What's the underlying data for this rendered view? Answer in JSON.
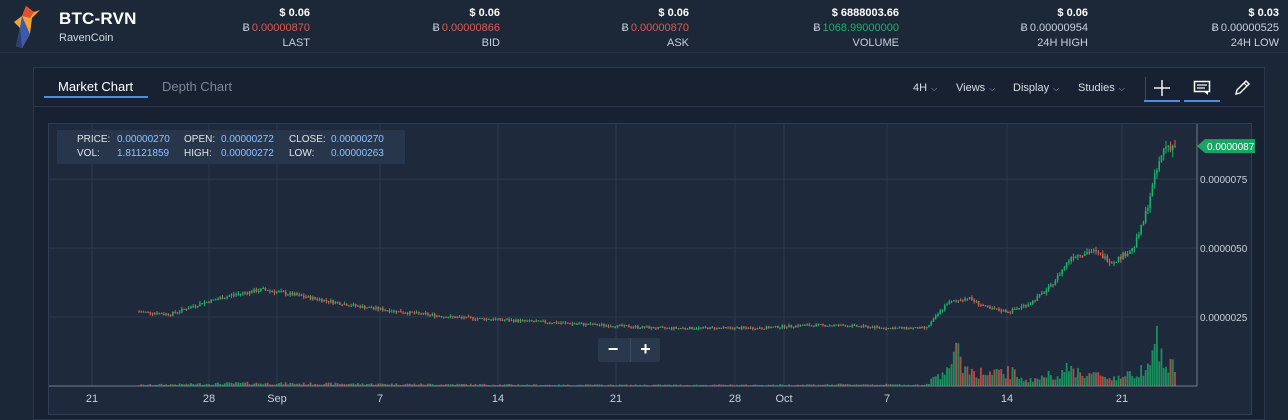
{
  "ticker": {
    "pair": "BTC-RVN",
    "coin": "RavenCoin",
    "stats": [
      {
        "usd": "$ 0.06",
        "btc": "0.00000870",
        "label": "LAST",
        "color": "#e05a4f"
      },
      {
        "usd": "$ 0.06",
        "btc": "0.00000866",
        "label": "BID",
        "color": "#e05a4f"
      },
      {
        "usd": "$ 0.06",
        "btc": "0.00000870",
        "label": "ASK",
        "color": "#e05a4f"
      },
      {
        "usd": "$ 6888003.66",
        "btc": "1068.99000000",
        "label": "VOLUME",
        "color": "#19b36b"
      },
      {
        "usd": "$ 0.06",
        "btc": "0.00000954",
        "label": "24H HIGH",
        "color": "#c8d0da"
      },
      {
        "usd": "$ 0.03",
        "btc": "0.00000525",
        "label": "24H LOW",
        "color": "#c8d0da"
      }
    ],
    "btc_symbol": "Ƀ"
  },
  "tabs": [
    {
      "label": "Market Chart",
      "active": true
    },
    {
      "label": "Depth Chart",
      "active": false
    }
  ],
  "menus": [
    {
      "label": "4H"
    },
    {
      "label": "Views"
    },
    {
      "label": "Display"
    },
    {
      "label": "Studies"
    }
  ],
  "tools": [
    {
      "name": "crosshair-icon",
      "active": true
    },
    {
      "name": "comment-icon",
      "active": true
    },
    {
      "name": "pencil-icon",
      "active": false
    }
  ],
  "ohlc": {
    "price_label": "PRICE:",
    "price": "0.00000270",
    "open_label": "OPEN:",
    "open": "0.00000272",
    "close_label": "CLOSE:",
    "close": "0.00000270",
    "vol_label": "VOL:",
    "vol": "1.81121859",
    "high_label": "HIGH:",
    "high": "0.00000272",
    "low_label": "LOW:",
    "low": "0.00000263"
  },
  "zoom": {
    "minus": "−",
    "plus": "+"
  },
  "chart_data": {
    "type": "candlestick",
    "x_ticks": [
      "21",
      "28",
      "Sep",
      "7",
      "14",
      "21",
      "28",
      "Oct",
      "7",
      "14",
      "21"
    ],
    "y_ticks": [
      "0.0000075",
      "0.0000050",
      "0.0000025"
    ],
    "y_tick_values": [
      7.5e-06,
      5e-06,
      2.5e-06
    ],
    "current_price_label": "0.0000087",
    "current_price": 8.7e-06,
    "ylim": [
      0.0,
      9.5e-06
    ],
    "price_path": [
      [
        0.0,
        2.7e-06
      ],
      [
        0.03,
        2.6e-06
      ],
      [
        0.06,
        3e-06
      ],
      [
        0.09,
        3.3e-06
      ],
      [
        0.12,
        3.5e-06
      ],
      [
        0.15,
        3.3e-06
      ],
      [
        0.18,
        3.1e-06
      ],
      [
        0.21,
        2.9e-06
      ],
      [
        0.25,
        2.7e-06
      ],
      [
        0.3,
        2.5e-06
      ],
      [
        0.35,
        2.4e-06
      ],
      [
        0.4,
        2.3e-06
      ],
      [
        0.45,
        2.2e-06
      ],
      [
        0.5,
        2.1e-06
      ],
      [
        0.55,
        2.1e-06
      ],
      [
        0.6,
        2.1e-06
      ],
      [
        0.64,
        2.2e-06
      ],
      [
        0.68,
        2.2e-06
      ],
      [
        0.72,
        2.1e-06
      ],
      [
        0.76,
        2.1e-06
      ],
      [
        0.78,
        3e-06
      ],
      [
        0.8,
        3.2e-06
      ],
      [
        0.82,
        2.8e-06
      ],
      [
        0.84,
        2.7e-06
      ],
      [
        0.86,
        3e-06
      ],
      [
        0.88,
        3.6e-06
      ],
      [
        0.9,
        4.7e-06
      ],
      [
        0.92,
        4.9e-06
      ],
      [
        0.94,
        4.5e-06
      ],
      [
        0.96,
        5e-06
      ],
      [
        0.97,
        6e-06
      ],
      [
        0.98,
        7.5e-06
      ],
      [
        0.99,
        8.7e-06
      ]
    ],
    "volume_path": [
      [
        0.0,
        0.02
      ],
      [
        0.1,
        0.05
      ],
      [
        0.2,
        0.04
      ],
      [
        0.3,
        0.03
      ],
      [
        0.4,
        0.02
      ],
      [
        0.5,
        0.02
      ],
      [
        0.6,
        0.02
      ],
      [
        0.7,
        0.03
      ],
      [
        0.76,
        0.02
      ],
      [
        0.78,
        0.35
      ],
      [
        0.79,
        0.55
      ],
      [
        0.8,
        0.3
      ],
      [
        0.82,
        0.2
      ],
      [
        0.84,
        0.25
      ],
      [
        0.86,
        0.1
      ],
      [
        0.88,
        0.2
      ],
      [
        0.9,
        0.3
      ],
      [
        0.92,
        0.2
      ],
      [
        0.94,
        0.15
      ],
      [
        0.96,
        0.2
      ],
      [
        0.97,
        0.35
      ],
      [
        0.98,
        0.9
      ],
      [
        0.99,
        0.35
      ]
    ]
  },
  "colors": {
    "up": "#19b36b",
    "down": "#e05a4f",
    "accent": "#4a90e2"
  }
}
